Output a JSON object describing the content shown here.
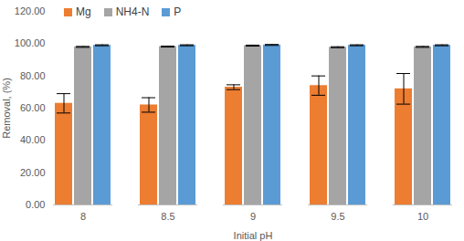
{
  "chart_data": {
    "type": "bar",
    "x_label": "Initial pH",
    "y_label": "Removal, (%)",
    "categories": [
      "8",
      "8.5",
      "9",
      "9.5",
      "10"
    ],
    "series": [
      {
        "name": "Mg",
        "color": "#ed7d31",
        "values": [
          63,
          62,
          73,
          74,
          72
        ],
        "errors": [
          6,
          4.5,
          1.5,
          6,
          9.5
        ]
      },
      {
        "name": "NH4-N",
        "color": "#a5a5a5",
        "values": [
          98,
          98.2,
          98.8,
          97.8,
          98
        ],
        "errors": [
          0.3,
          0.3,
          0.3,
          0.3,
          0.3
        ]
      },
      {
        "name": "P",
        "color": "#5b9bd5",
        "values": [
          99,
          99,
          99.2,
          99,
          99
        ],
        "errors": [
          0.3,
          0.3,
          0.3,
          0.3,
          0.3
        ]
      }
    ],
    "ylim": [
      0,
      120
    ],
    "yticks": [
      {
        "value": 0,
        "label": "0.00"
      },
      {
        "value": 20,
        "label": "20.00"
      },
      {
        "value": 40,
        "label": "40.00"
      },
      {
        "value": 60,
        "label": "60.00"
      },
      {
        "value": 80,
        "label": "80.00"
      },
      {
        "value": 100,
        "label": "100.00"
      },
      {
        "value": 120,
        "label": "120.00"
      }
    ],
    "legend": "top-left",
    "grid": false
  }
}
